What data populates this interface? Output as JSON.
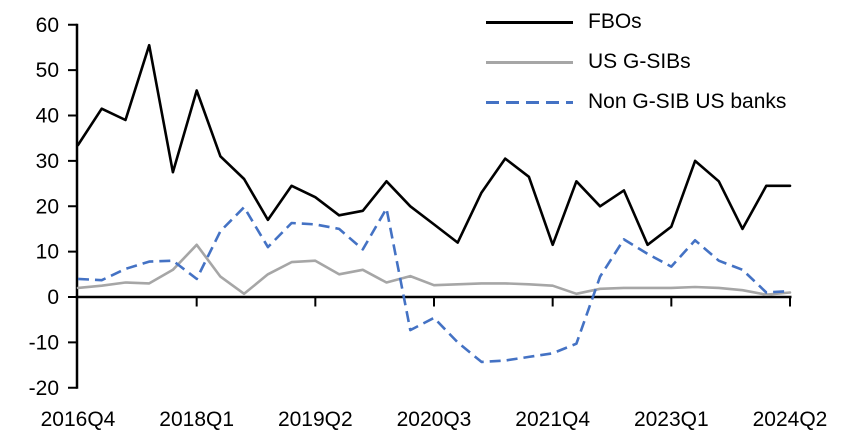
{
  "chart_data": {
    "type": "line",
    "title": "",
    "xlabel": "",
    "ylabel": "",
    "grid": false,
    "legend_position": "top-right",
    "categories": [
      "2016Q4",
      "2017Q1",
      "2017Q2",
      "2017Q3",
      "2017Q4",
      "2018Q1",
      "2018Q2",
      "2018Q3",
      "2018Q4",
      "2019Q1",
      "2019Q2",
      "2019Q3",
      "2019Q4",
      "2020Q1",
      "2020Q2",
      "2020Q3",
      "2020Q4",
      "2021Q1",
      "2021Q2",
      "2021Q3",
      "2021Q4",
      "2022Q1",
      "2022Q2",
      "2022Q3",
      "2022Q4",
      "2023Q1",
      "2023Q2",
      "2023Q3",
      "2023Q4",
      "2024Q1",
      "2024Q2"
    ],
    "x_axis_tick_labels": [
      "2016Q4",
      "2018Q1",
      "2019Q2",
      "2020Q3",
      "2021Q4",
      "2023Q1",
      "2024Q2"
    ],
    "y_axis": {
      "min": -20,
      "max": 60,
      "tick_step": 10,
      "tick_labels": [
        "60",
        "50",
        "40",
        "30",
        "20",
        "10",
        "0",
        "-10",
        "-20"
      ]
    },
    "series": [
      {
        "name": "FBOs",
        "color": "#000000",
        "style": "solid",
        "values": [
          33.5,
          41.5,
          39,
          55.5,
          27.5,
          45.5,
          31,
          26,
          17,
          24.5,
          22,
          18,
          19,
          25.5,
          20,
          16,
          12,
          23,
          30.5,
          26.5,
          11.5,
          25.5,
          20,
          23.5,
          11.5,
          15.5,
          30,
          25.5,
          15,
          24.5,
          24.5
        ]
      },
      {
        "name": "US G-SIBs",
        "color": "#A6A6A6",
        "style": "solid",
        "values": [
          2,
          2.5,
          3.2,
          3,
          6,
          11.5,
          4.5,
          0.7,
          5,
          7.7,
          8,
          5,
          6,
          3.2,
          4.6,
          2.6,
          2.8,
          3,
          3,
          2.8,
          2.5,
          0.7,
          1.8,
          2,
          2,
          2,
          2.2,
          2,
          1.5,
          0.5,
          1
        ]
      },
      {
        "name": "Non G-SIB US banks",
        "color": "#4472C4",
        "style": "dashed",
        "values": [
          4,
          3.7,
          6.2,
          7.8,
          8,
          4,
          14.5,
          19.8,
          11,
          16.3,
          16,
          15,
          10.5,
          19.5,
          -7.3,
          -4.6,
          -10,
          -14.3,
          -14,
          -13.2,
          -12.4,
          -10.3,
          4.5,
          12.7,
          9.5,
          6.7,
          12.5,
          8,
          6,
          1,
          1.3
        ]
      }
    ]
  }
}
